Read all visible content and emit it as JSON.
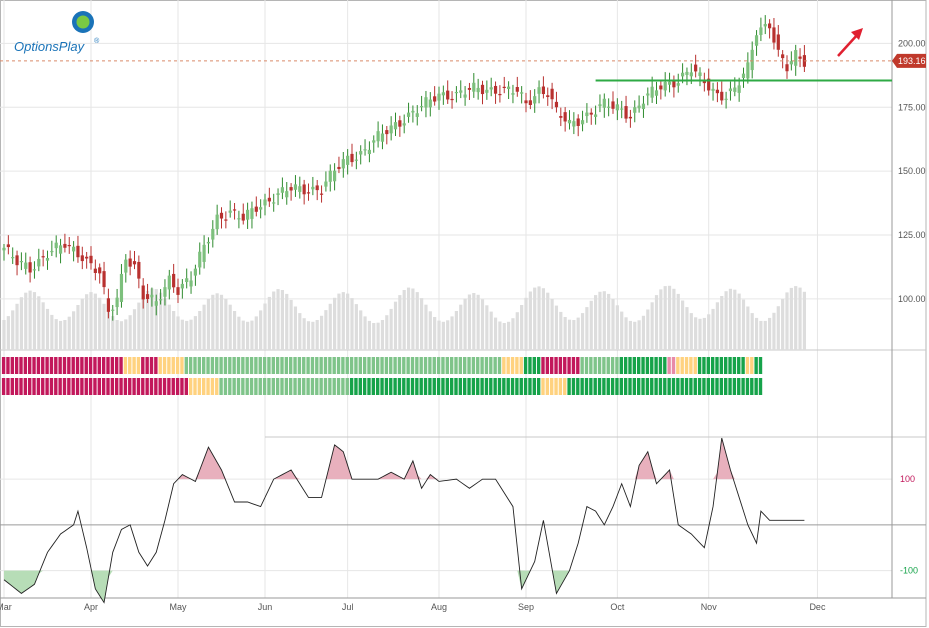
{
  "brand": {
    "name": "OptionsPlay",
    "trademark": "®"
  },
  "colors": {
    "up": "#7dc07d",
    "up_dark": "#2e8b2e",
    "down": "#b8312f",
    "grid": "#e6e6e6",
    "border": "#b5b5b5",
    "price_tag": "#c0392b",
    "support": "#2eaa44",
    "arrow": "#e02030",
    "cci_pos": "#e8b0bd",
    "cci_neg": "#b7ddb7",
    "band_red": "#c2185b",
    "band_pink": "#e88aa8",
    "band_yellow": "#ffd27f",
    "band_lightgreen": "#7fc48a",
    "band_green": "#16a34a",
    "volume": "#dddddd"
  },
  "chart_data": [
    {
      "type": "candlestick",
      "title": "",
      "last_price": 193.16,
      "last_price_label": "193.16",
      "support_level": 185.5,
      "trend_arrow": "up",
      "ylim": [
        80,
        217
      ],
      "y_ticks": [
        {
          "value": 100,
          "label": "100.00"
        },
        {
          "value": 125,
          "label": "125.00"
        },
        {
          "value": 150,
          "label": "150.00"
        },
        {
          "value": 175,
          "label": "175.00"
        },
        {
          "value": 200,
          "label": "200.00"
        }
      ],
      "close_path": [
        [
          0,
          120
        ],
        [
          3,
          114
        ],
        [
          6,
          112
        ],
        [
          10,
          118
        ],
        [
          14,
          121
        ],
        [
          18,
          117
        ],
        [
          22,
          110
        ],
        [
          24,
          94
        ],
        [
          26,
          100
        ],
        [
          28,
          117
        ],
        [
          30,
          113
        ],
        [
          32,
          101
        ],
        [
          35,
          98
        ],
        [
          38,
          108
        ],
        [
          40,
          104
        ],
        [
          43,
          108
        ],
        [
          46,
          120
        ],
        [
          49,
          132
        ],
        [
          52,
          134
        ],
        [
          55,
          131
        ],
        [
          58,
          136
        ],
        [
          62,
          140
        ],
        [
          66,
          143
        ],
        [
          70,
          143
        ],
        [
          73,
          143
        ],
        [
          76,
          150
        ],
        [
          79,
          155
        ],
        [
          82,
          157
        ],
        [
          86,
          163
        ],
        [
          89,
          167
        ],
        [
          93,
          172
        ],
        [
          96,
          175
        ],
        [
          100,
          180
        ],
        [
          104,
          180
        ],
        [
          108,
          182
        ],
        [
          112,
          182
        ],
        [
          114,
          182
        ],
        [
          118,
          181
        ],
        [
          120,
          176
        ],
        [
          123,
          182
        ],
        [
          125,
          181
        ],
        [
          127,
          173
        ],
        [
          130,
          168
        ],
        [
          132,
          170
        ],
        [
          134,
          172
        ],
        [
          138,
          176
        ],
        [
          142,
          174
        ],
        [
          144,
          172
        ],
        [
          147,
          178
        ],
        [
          151,
          183
        ],
        [
          155,
          186
        ],
        [
          158,
          190
        ],
        [
          160,
          186
        ],
        [
          162,
          183
        ],
        [
          164,
          180
        ],
        [
          166,
          180
        ],
        [
          168,
          182
        ],
        [
          171,
          190
        ],
        [
          173,
          205
        ],
        [
          176,
          208
        ],
        [
          178,
          196
        ],
        [
          180,
          190
        ],
        [
          182,
          195
        ],
        [
          184,
          193
        ]
      ],
      "volume": [
        10.0,
        11.3,
        13.2,
        15.4,
        17.6,
        19.1,
        19.8,
        19.3,
        17.9,
        15.9,
        13.7,
        11.7,
        10.3,
        9.7,
        10.0,
        11.1,
        12.9,
        15.0,
        17.1,
        18.6,
        19.3,
        18.8,
        17.4,
        15.4,
        13.2,
        11.3,
        10.0,
        9.6,
        10.2,
        11.6,
        13.6,
        15.8,
        18.0,
        19.7,
        20.5,
        20.3,
        19.1,
        17.2,
        15.1,
        13.0,
        11.2,
        10.1,
        9.7,
        10.1,
        11.3,
        13.0,
        15.1,
        17.0,
        18.4,
        18.9,
        18.4,
        17.0,
        15.1,
        13.0,
        11.1,
        9.8,
        9.4,
        9.8,
        11.2,
        13.2,
        15.5,
        17.7,
        19.5,
        20.3,
        20.0,
        18.7,
        16.7,
        14.5,
        12.3,
        10.6,
        9.6,
        9.4,
        10.0,
        11.4,
        13.3,
        15.4,
        17.4,
        18.8,
        19.3,
        18.8,
        17.3,
        15.3,
        13.2,
        11.2,
        9.7,
        9.0,
        9.1,
        10.0,
        11.6,
        13.7,
        16.1,
        18.3,
        20.0,
        20.8,
        20.5,
        19.3,
        17.3,
        15.1,
        12.9,
        11.0,
        9.8,
        9.4,
        9.9,
        11.2,
        13.0,
        15.1,
        17.1,
        18.5,
        19.0,
        18.4,
        16.9,
        14.9,
        12.8,
        10.8,
        9.5,
        9.0,
        9.4,
        10.6,
        12.6,
        15.0,
        17.4,
        19.5,
        20.8,
        21.2,
        20.6,
        19.1,
        17.0,
        14.8,
        12.7,
        11.0,
        10.1,
        10.0,
        10.8,
        12.3,
        14.3,
        16.4,
        18.3,
        19.4,
        19.6,
        18.7,
        17.0,
        14.9,
        12.8,
        10.9,
        9.7,
        9.4,
        9.9,
        11.4,
        13.5,
        15.9,
        18.3,
        20.2,
        21.3,
        21.4,
        20.4,
        18.7,
        16.5,
        14.3,
        12.3,
        10.9,
        10.4,
        10.7,
        11.9,
        13.7,
        15.9,
        18.0,
        19.6,
        20.4,
        20.1,
        18.8,
        16.8,
        14.5,
        12.3,
        10.7,
        9.7,
        9.7,
        10.7,
        12.4,
        14.6,
        17.0,
        19.2,
        20.7,
        21.3,
        20.8,
        19.4
      ],
      "x_labels": [
        {
          "i": 0,
          "label": "Mar"
        },
        {
          "i": 20,
          "label": "Apr"
        },
        {
          "i": 40,
          "label": "May"
        },
        {
          "i": 60,
          "label": "Jun"
        },
        {
          "i": 79,
          "label": "Jul"
        },
        {
          "i": 100,
          "label": "Aug"
        },
        {
          "i": 120,
          "label": "Sep"
        },
        {
          "i": 141,
          "label": "Oct"
        },
        {
          "i": 162,
          "label": "Nov"
        },
        {
          "i": 187,
          "label": "Dec"
        }
      ]
    },
    {
      "type": "heatmap",
      "title": "",
      "rows": [
        [
          [
            0,
            28,
            "band_red"
          ],
          [
            28,
            32,
            "band_yellow"
          ],
          [
            32,
            36,
            "band_red"
          ],
          [
            36,
            42,
            "band_yellow"
          ],
          [
            42,
            115,
            "band_lightgreen"
          ],
          [
            115,
            120,
            "band_yellow"
          ],
          [
            120,
            124,
            "band_green"
          ],
          [
            124,
            133,
            "band_red"
          ],
          [
            133,
            142,
            "band_lightgreen"
          ],
          [
            142,
            153,
            "band_green"
          ],
          [
            153,
            155,
            "band_pink"
          ],
          [
            155,
            160,
            "band_yellow"
          ],
          [
            160,
            171,
            "band_green"
          ],
          [
            171,
            173,
            "band_yellow"
          ],
          [
            173,
            175,
            "band_green"
          ]
        ],
        [
          [
            0,
            43,
            "band_red"
          ],
          [
            43,
            50,
            "band_yellow"
          ],
          [
            50,
            80,
            "band_lightgreen"
          ],
          [
            80,
            124,
            "band_green"
          ],
          [
            124,
            130,
            "band_yellow"
          ],
          [
            130,
            136,
            "band_green"
          ],
          [
            136,
            175,
            "band_green"
          ]
        ]
      ]
    },
    {
      "type": "line",
      "title": "",
      "ylim": [
        -160,
        190
      ],
      "y_ticks": [
        {
          "value": 100,
          "label": "100",
          "color": "#c2185b"
        },
        {
          "value": -100,
          "label": "-100",
          "color": "#16a34a"
        }
      ],
      "path": [
        [
          0,
          -120
        ],
        [
          4,
          -150
        ],
        [
          7,
          -130
        ],
        [
          10,
          -60
        ],
        [
          13,
          -20
        ],
        [
          16,
          0
        ],
        [
          17,
          30
        ],
        [
          19,
          -50
        ],
        [
          21,
          -140
        ],
        [
          23,
          -170
        ],
        [
          25,
          -60
        ],
        [
          27,
          -10
        ],
        [
          29,
          0
        ],
        [
          31,
          -60
        ],
        [
          33,
          -90
        ],
        [
          35,
          -60
        ],
        [
          37,
          10
        ],
        [
          39,
          90
        ],
        [
          41,
          110
        ],
        [
          44,
          95
        ],
        [
          47,
          170
        ],
        [
          50,
          120
        ],
        [
          53,
          50
        ],
        [
          56,
          50
        ],
        [
          59,
          40
        ],
        [
          62,
          100
        ],
        [
          66,
          120
        ],
        [
          70,
          60
        ],
        [
          73,
          60
        ],
        [
          76,
          175
        ],
        [
          78,
          160
        ],
        [
          80,
          100
        ],
        [
          83,
          100
        ],
        [
          86,
          100
        ],
        [
          89,
          115
        ],
        [
          92,
          100
        ],
        [
          94,
          140
        ],
        [
          96,
          80
        ],
        [
          98,
          110
        ],
        [
          100,
          95
        ],
        [
          104,
          100
        ],
        [
          107,
          80
        ],
        [
          110,
          100
        ],
        [
          113,
          100
        ],
        [
          117,
          40
        ],
        [
          119,
          -140
        ],
        [
          122,
          -80
        ],
        [
          124,
          10
        ],
        [
          127,
          -150
        ],
        [
          130,
          -100
        ],
        [
          132,
          -40
        ],
        [
          134,
          40
        ],
        [
          136,
          30
        ],
        [
          138,
          0
        ],
        [
          140,
          40
        ],
        [
          142,
          90
        ],
        [
          144,
          40
        ],
        [
          146,
          130
        ],
        [
          148,
          160
        ],
        [
          150,
          90
        ],
        [
          153,
          120
        ],
        [
          155,
          0
        ],
        [
          158,
          -20
        ],
        [
          161,
          -50
        ],
        [
          163,
          40
        ],
        [
          165,
          190
        ],
        [
          167,
          120
        ],
        [
          169,
          60
        ],
        [
          171,
          0
        ],
        [
          173,
          -40
        ],
        [
          174,
          30
        ],
        [
          176,
          10
        ]
      ]
    }
  ]
}
